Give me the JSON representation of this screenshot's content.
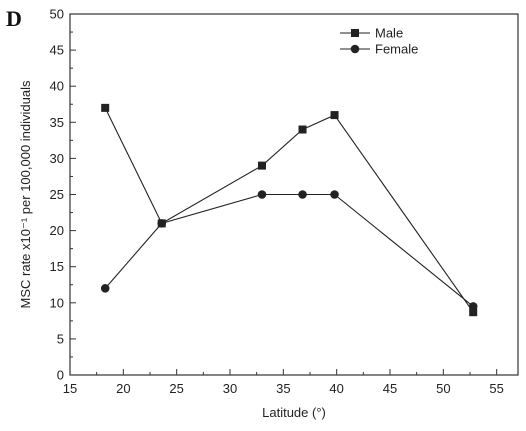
{
  "panel_label": "D",
  "chart_data": {
    "type": "line",
    "xlabel": "Latitude (°)",
    "ylabel": "MSC rate x10⁻¹ per 100,000 individuals",
    "xlim": [
      15,
      57
    ],
    "ylim": [
      0,
      50
    ],
    "xticks": [
      15,
      20,
      25,
      30,
      35,
      40,
      45,
      50,
      55
    ],
    "yticks": [
      0,
      5,
      10,
      15,
      20,
      25,
      30,
      35,
      40,
      45,
      50
    ],
    "grid": false,
    "legend_placement": "top-right",
    "series": [
      {
        "name": "Male",
        "marker": "square",
        "color": "#222222",
        "x": [
          18.3,
          23.6,
          33.0,
          36.8,
          39.8,
          52.8
        ],
        "values": [
          37,
          21,
          29,
          34,
          36,
          8.7
        ]
      },
      {
        "name": "Female",
        "marker": "circle",
        "color": "#222222",
        "x": [
          18.3,
          23.6,
          33.0,
          36.8,
          39.8,
          52.8
        ],
        "values": [
          12,
          21,
          25,
          25,
          25,
          9.5
        ]
      }
    ]
  }
}
